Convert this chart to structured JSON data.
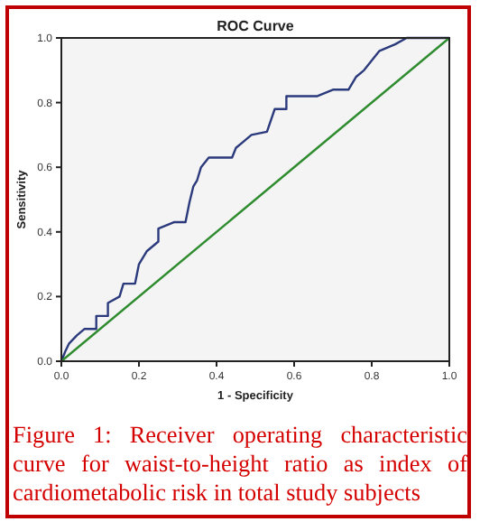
{
  "chart_data": {
    "type": "line",
    "title": "ROC Curve",
    "xlabel": "1 - Specificity",
    "ylabel": "Sensitivity",
    "annotations": [
      "Figure 1: Receiver operating characteristic curve for waist-to-height ratio as index of cardiometabolic risk in total study subjects"
    ],
    "series": [
      {
        "color": "#2b3a7c",
        "x": [
          0,
          0.01,
          0.02,
          0.04,
          0.06,
          0.09,
          0.09,
          0.12,
          0.12,
          0.15,
          0.16,
          0.19,
          0.2,
          0.22,
          0.25,
          0.25,
          0.29,
          0.32,
          0.33,
          0.34,
          0.35,
          0.36,
          0.38,
          0.44,
          0.45,
          0.47,
          0.49,
          0.53,
          0.55,
          0.58,
          0.58,
          0.66,
          0.7,
          0.74,
          0.76,
          0.78,
          0.8,
          0.82,
          0.86,
          0.89,
          1
        ],
        "values": [
          0,
          0.03,
          0.055,
          0.08,
          0.1,
          0.1,
          0.14,
          0.14,
          0.18,
          0.2,
          0.24,
          0.24,
          0.3,
          0.34,
          0.37,
          0.41,
          0.43,
          0.43,
          0.49,
          0.54,
          0.56,
          0.6,
          0.63,
          0.63,
          0.66,
          0.68,
          0.7,
          0.71,
          0.78,
          0.78,
          0.82,
          0.82,
          0.84,
          0.84,
          0.88,
          0.9,
          0.93,
          0.96,
          0.98,
          1,
          1
        ]
      },
      {
        "color": "#2e8b2e",
        "x": [
          0,
          1
        ],
        "values": [
          0,
          1
        ]
      }
    ],
    "xlim": [
      0,
      1
    ],
    "ylim": [
      0,
      1
    ],
    "xticks": [
      {
        "value": 0,
        "label": "0.0"
      },
      0.2,
      0.4,
      0.6,
      0.8,
      {
        "value": 1,
        "label": "1.0"
      }
    ],
    "yticks": [
      {
        "value": 0,
        "label": "0.0"
      },
      0.2,
      0.4,
      0.6,
      0.8,
      {
        "value": 1,
        "label": "1.0"
      }
    ],
    "grid": false,
    "marker": "none",
    "line_style": "solid"
  }
}
